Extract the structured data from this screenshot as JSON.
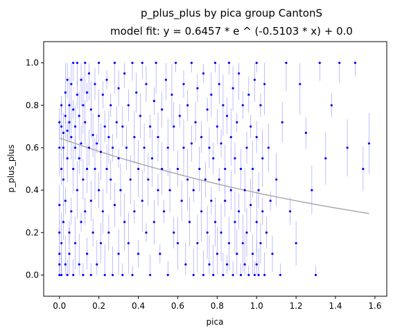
{
  "chart_data": {
    "type": "scatter",
    "title": "p_plus_plus by pica group CantonS",
    "subtitle": "model fit: y = 0.6457 * e ^ (-0.5103 * x) + 0.0",
    "xlabel": "pica",
    "ylabel": "p_plus_plus",
    "xlim": [
      -0.08,
      1.66
    ],
    "ylim": [
      -0.1,
      1.1
    ],
    "xticks": [
      "0.0",
      "0.2",
      "0.4",
      "0.6",
      "0.8",
      "1.0",
      "1.2",
      "1.4",
      "1.6"
    ],
    "yticks": [
      "0.0",
      "0.2",
      "0.4",
      "0.6",
      "0.8",
      "1.0"
    ],
    "grid": false,
    "point_color": "#0000ff",
    "errorbar_color": "#6464ff",
    "fit_color": "#aaaaaa",
    "fit": {
      "a": 0.6457,
      "b": -0.5103,
      "c": 0.0,
      "x_range": [
        0.0,
        1.57
      ]
    },
    "points": [
      [
        0.0,
        0.0
      ],
      [
        0.0,
        0.05
      ],
      [
        0.0,
        0.1
      ],
      [
        0.0,
        0.2
      ],
      [
        0.0,
        0.33
      ],
      [
        0.0,
        0.6
      ],
      [
        0.0,
        0.72
      ],
      [
        0.01,
        0.0
      ],
      [
        0.01,
        0.15
      ],
      [
        0.01,
        0.5
      ],
      [
        0.01,
        0.7
      ],
      [
        0.01,
        0.8
      ],
      [
        0.02,
        0.25
      ],
      [
        0.02,
        0.45
      ],
      [
        0.02,
        0.6
      ],
      [
        0.02,
        0.67
      ],
      [
        0.03,
        0.05
      ],
      [
        0.03,
        0.35
      ],
      [
        0.03,
        0.75
      ],
      [
        0.03,
        0.86
      ],
      [
        0.04,
        0.0
      ],
      [
        0.04,
        0.55
      ],
      [
        0.04,
        0.68
      ],
      [
        0.04,
        0.92
      ],
      [
        0.05,
        0.1
      ],
      [
        0.05,
        0.2
      ],
      [
        0.05,
        0.72
      ],
      [
        0.05,
        0.8
      ],
      [
        0.06,
        0.3
      ],
      [
        0.06,
        0.65
      ],
      [
        0.06,
        0.9
      ],
      [
        0.07,
        0.0
      ],
      [
        0.07,
        0.5
      ],
      [
        0.07,
        0.78
      ],
      [
        0.07,
        1.0
      ],
      [
        0.08,
        0.15
      ],
      [
        0.08,
        0.6
      ],
      [
        0.08,
        0.7
      ],
      [
        0.09,
        0.4
      ],
      [
        0.09,
        0.85
      ],
      [
        0.09,
        1.0
      ],
      [
        0.1,
        0.05
      ],
      [
        0.1,
        0.55
      ],
      [
        0.1,
        0.75
      ],
      [
        0.11,
        0.25
      ],
      [
        0.11,
        0.62
      ],
      [
        0.11,
        0.92
      ],
      [
        0.12,
        0.0
      ],
      [
        0.12,
        0.45
      ],
      [
        0.12,
        0.8
      ],
      [
        0.13,
        0.3
      ],
      [
        0.13,
        0.72
      ],
      [
        0.13,
        1.0
      ],
      [
        0.14,
        0.1
      ],
      [
        0.14,
        0.5
      ],
      [
        0.14,
        0.86
      ],
      [
        0.15,
        0.6
      ],
      [
        0.15,
        0.95
      ],
      [
        0.16,
        0.0
      ],
      [
        0.16,
        0.35
      ],
      [
        0.16,
        0.78
      ],
      [
        0.17,
        0.2
      ],
      [
        0.17,
        0.66
      ],
      [
        0.18,
        0.5
      ],
      [
        0.18,
        0.9
      ],
      [
        0.19,
        0.05
      ],
      [
        0.19,
        0.62
      ],
      [
        0.2,
        0.4
      ],
      [
        0.2,
        0.75
      ],
      [
        0.2,
        1.0
      ],
      [
        0.21,
        0.15
      ],
      [
        0.21,
        0.58
      ],
      [
        0.22,
        0.85
      ],
      [
        0.22,
        0.3
      ],
      [
        0.23,
        0.0
      ],
      [
        0.23,
        0.7
      ],
      [
        0.24,
        0.5
      ],
      [
        0.24,
        0.92
      ],
      [
        0.25,
        0.2
      ],
      [
        0.25,
        0.65
      ],
      [
        0.26,
        0.8
      ],
      [
        0.26,
        0.45
      ],
      [
        0.27,
        0.0
      ],
      [
        0.27,
        0.6
      ],
      [
        0.28,
        0.33
      ],
      [
        0.28,
        1.0
      ],
      [
        0.29,
        0.72
      ],
      [
        0.3,
        0.1
      ],
      [
        0.3,
        0.55
      ],
      [
        0.3,
        0.88
      ],
      [
        0.31,
        0.4
      ],
      [
        0.32,
        0.0
      ],
      [
        0.32,
        0.7
      ],
      [
        0.33,
        0.25
      ],
      [
        0.33,
        0.95
      ],
      [
        0.34,
        0.6
      ],
      [
        0.35,
        0.15
      ],
      [
        0.35,
        0.8
      ],
      [
        0.36,
        0.45
      ],
      [
        0.37,
        0.0
      ],
      [
        0.37,
        1.0
      ],
      [
        0.38,
        0.65
      ],
      [
        0.38,
        0.3
      ],
      [
        0.39,
        0.86
      ],
      [
        0.4,
        0.5
      ],
      [
        0.4,
        0.1
      ],
      [
        0.41,
        0.75
      ],
      [
        0.42,
        0.35
      ],
      [
        0.42,
        1.0
      ],
      [
        0.43,
        0.6
      ],
      [
        0.44,
        0.2
      ],
      [
        0.44,
        0.9
      ],
      [
        0.45,
        0.45
      ],
      [
        0.46,
        0.7
      ],
      [
        0.46,
        0.0
      ],
      [
        0.47,
        0.55
      ],
      [
        0.48,
        0.82
      ],
      [
        0.48,
        0.25
      ],
      [
        0.49,
        1.0
      ],
      [
        0.5,
        0.4
      ],
      [
        0.5,
        0.65
      ],
      [
        0.51,
        0.1
      ],
      [
        0.52,
        0.78
      ],
      [
        0.52,
        0.5
      ],
      [
        0.53,
        0.3
      ],
      [
        0.54,
        0.92
      ],
      [
        0.55,
        0.6
      ],
      [
        0.55,
        0.0
      ],
      [
        0.56,
        0.4
      ],
      [
        0.57,
        0.85
      ],
      [
        0.58,
        0.2
      ],
      [
        0.58,
        0.7
      ],
      [
        0.59,
        1.0
      ],
      [
        0.6,
        0.5
      ],
      [
        0.6,
        0.15
      ],
      [
        0.61,
        0.75
      ],
      [
        0.62,
        0.35
      ],
      [
        0.63,
        0.6
      ],
      [
        0.63,
        0.9
      ],
      [
        0.64,
        0.05
      ],
      [
        0.65,
        0.45
      ],
      [
        0.65,
        0.8
      ],
      [
        0.66,
        0.25
      ],
      [
        0.67,
        1.0
      ],
      [
        0.67,
        0.62
      ],
      [
        0.68,
        0.0
      ],
      [
        0.68,
        0.4
      ],
      [
        0.69,
        0.72
      ],
      [
        0.7,
        0.15
      ],
      [
        0.7,
        0.88
      ],
      [
        0.71,
        0.5
      ],
      [
        0.72,
        0.3
      ],
      [
        0.72,
        0.65
      ],
      [
        0.73,
        0.0
      ],
      [
        0.73,
        0.95
      ],
      [
        0.74,
        0.45
      ],
      [
        0.75,
        0.2
      ],
      [
        0.75,
        0.78
      ],
      [
        0.76,
        0.6
      ],
      [
        0.76,
        0.05
      ],
      [
        0.77,
        0.35
      ],
      [
        0.77,
        0.85
      ],
      [
        0.78,
        0.0
      ],
      [
        0.78,
        0.55
      ],
      [
        0.79,
        0.25
      ],
      [
        0.79,
        1.0
      ],
      [
        0.8,
        0.7
      ],
      [
        0.8,
        0.1
      ],
      [
        0.81,
        0.45
      ],
      [
        0.81,
        0.9
      ],
      [
        0.82,
        0.2
      ],
      [
        0.82,
        0.62
      ],
      [
        0.83,
        0.0
      ],
      [
        0.83,
        0.8
      ],
      [
        0.84,
        0.35
      ],
      [
        0.84,
        0.5
      ],
      [
        0.85,
        0.05
      ],
      [
        0.85,
        0.75
      ],
      [
        0.86,
        0.15
      ],
      [
        0.86,
        1.0
      ],
      [
        0.87,
        0.4
      ],
      [
        0.87,
        0.65
      ],
      [
        0.88,
        0.0
      ],
      [
        0.88,
        0.88
      ],
      [
        0.89,
        0.25
      ],
      [
        0.89,
        0.55
      ],
      [
        0.9,
        0.1
      ],
      [
        0.9,
        0.72
      ],
      [
        0.91,
        0.3
      ],
      [
        0.91,
        0.95
      ],
      [
        0.92,
        0.0
      ],
      [
        0.92,
        0.5
      ],
      [
        0.93,
        0.15
      ],
      [
        0.93,
        0.8
      ],
      [
        0.94,
        0.4
      ],
      [
        0.94,
        0.05
      ],
      [
        0.95,
        0.6
      ],
      [
        0.95,
        0.2
      ],
      [
        0.96,
        0.0
      ],
      [
        0.96,
        0.85
      ],
      [
        0.97,
        0.33
      ],
      [
        0.97,
        0.7
      ],
      [
        0.98,
        0.1
      ],
      [
        0.98,
        0.5
      ],
      [
        0.99,
        0.0
      ],
      [
        0.99,
        0.92
      ],
      [
        1.0,
        0.25
      ],
      [
        1.0,
        0.65
      ],
      [
        1.0,
        0.05
      ],
      [
        1.0,
        1.0
      ],
      [
        1.01,
        0.4
      ],
      [
        1.01,
        0.0
      ],
      [
        1.02,
        0.8
      ],
      [
        1.02,
        0.15
      ],
      [
        1.03,
        0.55
      ],
      [
        1.03,
        0.3
      ],
      [
        1.04,
        0.0
      ],
      [
        1.04,
        0.9
      ],
      [
        1.05,
        0.2
      ],
      [
        1.06,
        0.6
      ],
      [
        1.07,
        0.35
      ],
      [
        1.08,
        0.1
      ],
      [
        1.1,
        0.45
      ],
      [
        1.12,
        0.0
      ],
      [
        1.13,
        0.72
      ],
      [
        1.15,
        1.0
      ],
      [
        1.17,
        0.3
      ],
      [
        1.2,
        0.15
      ],
      [
        1.22,
        0.9
      ],
      [
        1.25,
        0.67
      ],
      [
        1.28,
        0.4
      ],
      [
        1.3,
        0.0
      ],
      [
        1.32,
        1.0
      ],
      [
        1.35,
        0.55
      ],
      [
        1.38,
        0.8
      ],
      [
        1.42,
        1.0
      ],
      [
        1.46,
        0.6
      ],
      [
        1.5,
        1.0
      ],
      [
        1.54,
        0.5
      ],
      [
        1.57,
        0.62
      ]
    ]
  }
}
